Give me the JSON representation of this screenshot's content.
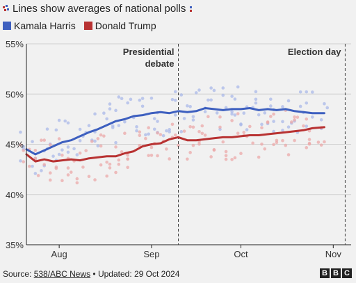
{
  "header": {
    "title": "Lines show averages of national polls",
    "icon": "poll-icon"
  },
  "legend": [
    {
      "name": "Kamala Harris",
      "color": "#3d5fbf"
    },
    {
      "name": "Donald Trump",
      "color": "#b83232"
    }
  ],
  "footer": {
    "source_prefix": "Source: ",
    "source_link": "538/ABC News",
    "updated": " • Updated: 29 Oct 2024",
    "logo_letters": [
      "B",
      "B",
      "C"
    ]
  },
  "chart_data": {
    "type": "line",
    "ylim": [
      35,
      55
    ],
    "y_ticks": [
      "55%",
      "50%",
      "45%",
      "40%",
      "35%"
    ],
    "x_ticks": [
      "Aug",
      "Sep",
      "Oct",
      "Nov"
    ],
    "grid": true,
    "annotations": [
      {
        "label_lines": [
          "Presidential",
          "debate"
        ],
        "date": "2024-09-10"
      },
      {
        "label_lines": [
          "Election day"
        ],
        "date": "2024-11-05"
      }
    ],
    "x": [
      "2024-07-21",
      "2024-07-24",
      "2024-07-27",
      "2024-07-30",
      "2024-08-02",
      "2024-08-05",
      "2024-08-08",
      "2024-08-11",
      "2024-08-14",
      "2024-08-17",
      "2024-08-20",
      "2024-08-23",
      "2024-08-26",
      "2024-08-29",
      "2024-09-01",
      "2024-09-04",
      "2024-09-07",
      "2024-09-10",
      "2024-09-13",
      "2024-09-16",
      "2024-09-19",
      "2024-09-22",
      "2024-09-25",
      "2024-09-28",
      "2024-10-01",
      "2024-10-04",
      "2024-10-07",
      "2024-10-10",
      "2024-10-13",
      "2024-10-16",
      "2024-10-19",
      "2024-10-22",
      "2024-10-25",
      "2024-10-29"
    ],
    "series": [
      {
        "name": "Kamala Harris",
        "color": "#3d5fbf",
        "values": [
          44.5,
          44.0,
          44.4,
          44.8,
          45.2,
          45.4,
          45.8,
          46.2,
          46.5,
          46.9,
          47.3,
          47.5,
          47.8,
          47.9,
          48.1,
          48.2,
          48.1,
          48.3,
          48.2,
          48.3,
          48.6,
          48.5,
          48.4,
          48.5,
          48.5,
          48.6,
          48.4,
          48.5,
          48.4,
          48.5,
          48.3,
          48.2,
          48.1,
          48.1
        ]
      },
      {
        "name": "Donald Trump",
        "color": "#b83232",
        "values": [
          44.0,
          43.3,
          43.5,
          43.3,
          43.4,
          43.5,
          43.4,
          43.6,
          43.7,
          43.8,
          43.8,
          44.1,
          44.3,
          44.8,
          45.0,
          45.1,
          45.5,
          45.7,
          45.4,
          45.4,
          45.5,
          45.6,
          45.7,
          45.7,
          45.8,
          45.9,
          45.9,
          46.0,
          46.1,
          46.2,
          46.3,
          46.4,
          46.6,
          46.7
        ]
      }
    ]
  }
}
